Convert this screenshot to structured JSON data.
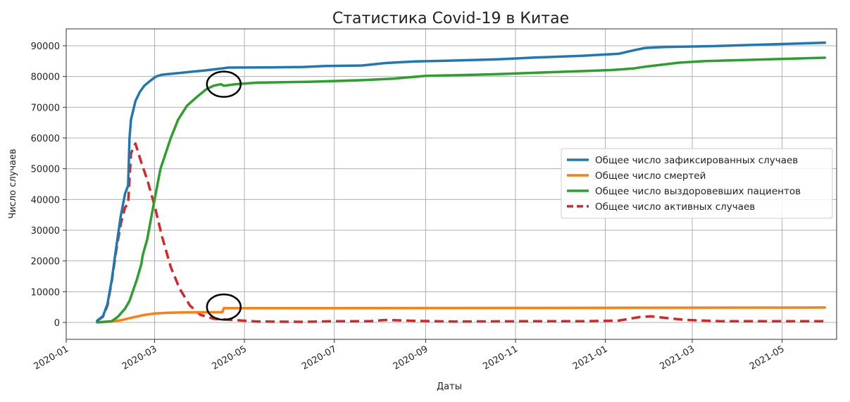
{
  "chart_data": {
    "type": "line",
    "title": "Статистика Covid-19 в Китае",
    "xlabel": "Даты",
    "ylabel": "Число случаев",
    "grid": true,
    "legend_position": "right",
    "x_range": [
      "2020-01-01",
      "2021-06-07"
    ],
    "ylim": [
      -5500,
      95500
    ],
    "x_ticks": [
      "2020-01-01",
      "2020-03-01",
      "2020-05-01",
      "2020-07-01",
      "2020-09-01",
      "2020-11-01",
      "2021-01-01",
      "2021-03-01",
      "2021-05-01"
    ],
    "x_tick_labels": [
      "2020-01",
      "2020-03",
      "2020-05",
      "2020-07",
      "2020-09",
      "2020-11",
      "2021-01",
      "2021-03",
      "2021-05"
    ],
    "y_ticks": [
      0,
      10000,
      20000,
      30000,
      40000,
      50000,
      60000,
      70000,
      80000,
      90000
    ],
    "y_tick_labels": [
      "0",
      "10000",
      "20000",
      "30000",
      "40000",
      "50000",
      "60000",
      "70000",
      "80000",
      "90000"
    ],
    "series": [
      {
        "name": "Общее число зафиксированных случаев",
        "color": "#1f77b4",
        "style": "solid",
        "points": [
          [
            "2020-01-22",
            548
          ],
          [
            "2020-01-26",
            2100
          ],
          [
            "2020-01-29",
            6000
          ],
          [
            "2020-02-01",
            14000
          ],
          [
            "2020-02-04",
            24500
          ],
          [
            "2020-02-07",
            34500
          ],
          [
            "2020-02-10",
            42000
          ],
          [
            "2020-02-12",
            44500
          ],
          [
            "2020-02-13",
            60000
          ],
          [
            "2020-02-14",
            66000
          ],
          [
            "2020-02-17",
            72000
          ],
          [
            "2020-02-20",
            75000
          ],
          [
            "2020-02-23",
            77000
          ],
          [
            "2020-02-27",
            78600
          ],
          [
            "2020-03-02",
            80000
          ],
          [
            "2020-03-06",
            80600
          ],
          [
            "2020-03-15",
            81000
          ],
          [
            "2020-03-25",
            81500
          ],
          [
            "2020-04-05",
            82000
          ],
          [
            "2020-04-17",
            82700
          ],
          [
            "2020-04-20",
            82900
          ],
          [
            "2020-05-15",
            82950
          ],
          [
            "2020-06-10",
            83100
          ],
          [
            "2020-06-25",
            83400
          ],
          [
            "2020-07-20",
            83600
          ],
          [
            "2020-08-05",
            84400
          ],
          [
            "2020-08-25",
            84900
          ],
          [
            "2020-09-20",
            85200
          ],
          [
            "2020-10-20",
            85600
          ],
          [
            "2020-11-15",
            86200
          ],
          [
            "2020-12-15",
            86700
          ],
          [
            "2021-01-10",
            87400
          ],
          [
            "2021-01-20",
            88500
          ],
          [
            "2021-01-28",
            89300
          ],
          [
            "2021-02-10",
            89600
          ],
          [
            "2021-03-15",
            89900
          ],
          [
            "2021-05-30",
            91000
          ]
        ]
      },
      {
        "name": "Общее число смертей",
        "color": "#ff7f0e",
        "style": "solid",
        "points": [
          [
            "2020-01-22",
            17
          ],
          [
            "2020-02-01",
            300
          ],
          [
            "2020-02-07",
            700
          ],
          [
            "2020-02-14",
            1500
          ],
          [
            "2020-02-23",
            2450
          ],
          [
            "2020-03-01",
            2900
          ],
          [
            "2020-03-10",
            3150
          ],
          [
            "2020-03-25",
            3300
          ],
          [
            "2020-04-16",
            3340
          ],
          [
            "2020-04-17",
            4630
          ],
          [
            "2020-07-01",
            4640
          ],
          [
            "2021-05-30",
            4846
          ]
        ]
      },
      {
        "name": "Общее число выздоровевших пациентов",
        "color": "#2ca02c",
        "style": "solid",
        "points": [
          [
            "2020-01-22",
            28
          ],
          [
            "2020-02-01",
            400
          ],
          [
            "2020-02-05",
            1800
          ],
          [
            "2020-02-10",
            4500
          ],
          [
            "2020-02-13",
            7000
          ],
          [
            "2020-02-18",
            14000
          ],
          [
            "2020-02-21",
            19000
          ],
          [
            "2020-02-22",
            22000
          ],
          [
            "2020-02-25",
            27000
          ],
          [
            "2020-03-01",
            40000
          ],
          [
            "2020-03-05",
            50000
          ],
          [
            "2020-03-12",
            60000
          ],
          [
            "2020-03-17",
            66000
          ],
          [
            "2020-03-23",
            70500
          ],
          [
            "2020-03-30",
            73500
          ],
          [
            "2020-04-05",
            75800
          ],
          [
            "2020-04-10",
            77000
          ],
          [
            "2020-04-15",
            77500
          ],
          [
            "2020-04-17",
            77000
          ],
          [
            "2020-04-25",
            77500
          ],
          [
            "2020-05-10",
            78000
          ],
          [
            "2020-06-15",
            78300
          ],
          [
            "2020-07-20",
            78800
          ],
          [
            "2020-08-10",
            79300
          ],
          [
            "2020-09-01",
            80200
          ],
          [
            "2020-10-15",
            80700
          ],
          [
            "2020-12-01",
            81500
          ],
          [
            "2021-01-05",
            82100
          ],
          [
            "2021-01-20",
            82600
          ],
          [
            "2021-01-28",
            83200
          ],
          [
            "2021-02-20",
            84500
          ],
          [
            "2021-03-10",
            85000
          ],
          [
            "2021-05-30",
            86100
          ]
        ]
      },
      {
        "name": "Общее число активных случаев",
        "color": "#d62728",
        "style": "dashed",
        "points": [
          [
            "2020-01-22",
            503
          ],
          [
            "2020-01-26",
            1900
          ],
          [
            "2020-01-29",
            5500
          ],
          [
            "2020-02-01",
            13500
          ],
          [
            "2020-02-04",
            23500
          ],
          [
            "2020-02-07",
            32000
          ],
          [
            "2020-02-10",
            37500
          ],
          [
            "2020-02-12",
            38500
          ],
          [
            "2020-02-14",
            55000
          ],
          [
            "2020-02-17",
            58200
          ],
          [
            "2020-02-21",
            52000
          ],
          [
            "2020-02-25",
            46500
          ],
          [
            "2020-03-01",
            38000
          ],
          [
            "2020-03-06",
            28000
          ],
          [
            "2020-03-12",
            18000
          ],
          [
            "2020-03-18",
            11000
          ],
          [
            "2020-03-25",
            5500
          ],
          [
            "2020-04-01",
            2500
          ],
          [
            "2020-04-10",
            1200
          ],
          [
            "2020-04-20",
            900
          ],
          [
            "2020-05-10",
            300
          ],
          [
            "2020-06-10",
            200
          ],
          [
            "2020-07-01",
            400
          ],
          [
            "2020-07-25",
            400
          ],
          [
            "2020-08-05",
            800
          ],
          [
            "2020-08-25",
            500
          ],
          [
            "2020-09-20",
            300
          ],
          [
            "2020-11-15",
            400
          ],
          [
            "2020-12-20",
            400
          ],
          [
            "2021-01-10",
            600
          ],
          [
            "2021-01-25",
            1800
          ],
          [
            "2021-02-01",
            2000
          ],
          [
            "2021-02-10",
            1500
          ],
          [
            "2021-02-25",
            800
          ],
          [
            "2021-03-20",
            400
          ],
          [
            "2021-05-30",
            400
          ]
        ]
      }
    ],
    "annotations": [
      {
        "shape": "circle",
        "x": "2020-04-17",
        "y": 77500
      },
      {
        "shape": "circle",
        "x": "2020-04-17",
        "y": 5000
      }
    ]
  }
}
